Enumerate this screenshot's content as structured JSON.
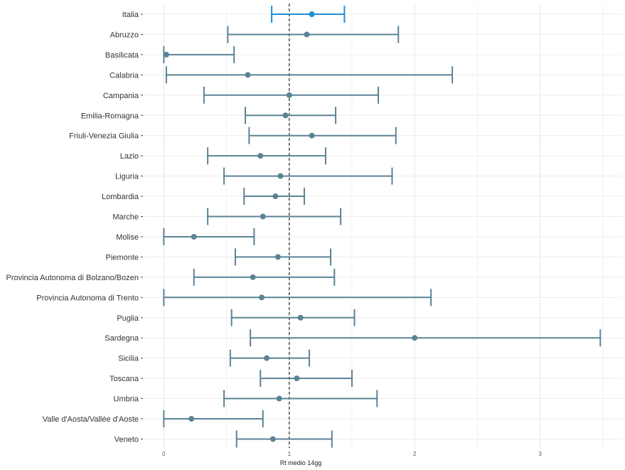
{
  "chart_data": {
    "type": "errorbar",
    "xlabel": "Rt medio 14gg",
    "xlim": [
      -0.08,
      3.6
    ],
    "x_ticks": [
      0,
      1,
      2,
      3
    ],
    "x_tick_labels": [
      "0",
      "1",
      "2",
      "3"
    ],
    "reference_line": 1,
    "grid": true,
    "colors": {
      "highlight": "#1f8fd6",
      "default": "#5a8396",
      "reference_line": "#333333"
    },
    "categories": [
      "Italia",
      "Abruzzo",
      "Basilicata",
      "Calabria",
      "Campania",
      "Emilia-Romagna",
      "Friuli-Venezia Giulia",
      "Lazio",
      "Liguria",
      "Lombardia",
      "Marche",
      "Molise",
      "Piemonte",
      "Provincia Autonoma di Bolzano/Bozen",
      "Provincia Autonoma di Trento",
      "Puglia",
      "Sardegna",
      "Sicilia",
      "Toscana",
      "Umbria",
      "Valle d'Aosta/Vallée d'Aoste",
      "Veneto"
    ],
    "series": [
      {
        "category": "Italia",
        "value": 1.18,
        "lower": 0.86,
        "upper": 1.44,
        "highlight": true
      },
      {
        "category": "Abruzzo",
        "value": 1.14,
        "lower": 0.51,
        "upper": 1.87
      },
      {
        "category": "Basilicata",
        "value": 0.02,
        "lower": 0.0,
        "upper": 0.56
      },
      {
        "category": "Calabria",
        "value": 0.67,
        "lower": 0.02,
        "upper": 2.3
      },
      {
        "category": "Campania",
        "value": 1.0,
        "lower": 0.32,
        "upper": 1.71
      },
      {
        "category": "Emilia-Romagna",
        "value": 0.97,
        "lower": 0.65,
        "upper": 1.37
      },
      {
        "category": "Friuli-Venezia Giulia",
        "value": 1.18,
        "lower": 0.68,
        "upper": 1.85
      },
      {
        "category": "Lazio",
        "value": 0.77,
        "lower": 0.35,
        "upper": 1.29
      },
      {
        "category": "Liguria",
        "value": 0.93,
        "lower": 0.48,
        "upper": 1.82
      },
      {
        "category": "Lombardia",
        "value": 0.89,
        "lower": 0.64,
        "upper": 1.12
      },
      {
        "category": "Marche",
        "value": 0.79,
        "lower": 0.35,
        "upper": 1.41
      },
      {
        "category": "Molise",
        "value": 0.24,
        "lower": 0.0,
        "upper": 0.72
      },
      {
        "category": "Piemonte",
        "value": 0.91,
        "lower": 0.57,
        "upper": 1.33
      },
      {
        "category": "Provincia Autonoma di Bolzano/Bozen",
        "value": 0.71,
        "lower": 0.24,
        "upper": 1.36
      },
      {
        "category": "Provincia Autonoma di Trento",
        "value": 0.78,
        "lower": 0.0,
        "upper": 2.13
      },
      {
        "category": "Puglia",
        "value": 1.09,
        "lower": 0.54,
        "upper": 1.52
      },
      {
        "category": "Sardegna",
        "value": 2.0,
        "lower": 0.69,
        "upper": 3.48
      },
      {
        "category": "Sicilia",
        "value": 0.82,
        "lower": 0.53,
        "upper": 1.16
      },
      {
        "category": "Toscana",
        "value": 1.06,
        "lower": 0.77,
        "upper": 1.5
      },
      {
        "category": "Umbria",
        "value": 0.92,
        "lower": 0.48,
        "upper": 1.7
      },
      {
        "category": "Valle d'Aosta/Vallée d'Aoste",
        "value": 0.22,
        "lower": 0.0,
        "upper": 0.79
      },
      {
        "category": "Veneto",
        "value": 0.87,
        "lower": 0.58,
        "upper": 1.34
      }
    ]
  }
}
